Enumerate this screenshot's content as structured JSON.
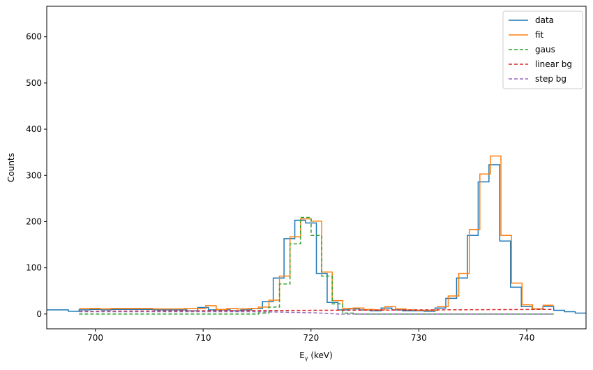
{
  "chart_data": {
    "type": "line",
    "xlabel_main": "E",
    "xlabel_sub": "γ",
    "xlabel_rest": " (keV)",
    "ylabel": "Counts",
    "xlim": [
      695.5,
      745.5
    ],
    "ylim": [
      -32,
      666
    ],
    "xticks": [
      700,
      710,
      720,
      730,
      740
    ],
    "yticks": [
      0,
      100,
      200,
      300,
      400,
      500,
      600
    ],
    "legend_position": "top-right",
    "grid": false,
    "bin_edges": [
      695.5,
      696.5,
      697.5,
      698.5,
      699.5,
      700.5,
      701.5,
      702.5,
      703.5,
      704.5,
      705.5,
      706.5,
      707.5,
      708.5,
      709.5,
      710.5,
      711.5,
      712.5,
      713.5,
      714.5,
      715.5,
      716.5,
      717.5,
      718.5,
      719.5,
      720.5,
      721.5,
      722.5,
      723.5,
      724.5,
      725.5,
      726.5,
      727.5,
      728.5,
      729.5,
      730.5,
      731.5,
      732.5,
      733.5,
      734.5,
      735.5,
      736.5,
      737.5,
      738.5,
      739.5,
      740.5,
      741.5,
      742.5,
      743.5,
      744.5,
      745.5
    ],
    "series": [
      {
        "name": "data",
        "style": "step",
        "color": "#1f77b4",
        "values": [
          9,
          9,
          6,
          9,
          10,
          9,
          10,
          10,
          10,
          10,
          9,
          9,
          9,
          7,
          14,
          9,
          9,
          7,
          9,
          12,
          27,
          78,
          163,
          203,
          197,
          88,
          25,
          9,
          11,
          9,
          7,
          13,
          9,
          7,
          7,
          6,
          13,
          34,
          78,
          170,
          286,
          323,
          158,
          58,
          16,
          11,
          16,
          8,
          5,
          2
        ]
      },
      {
        "name": "fit",
        "style": "step",
        "color": "#ff7f0e",
        "x_range": [
          698.5,
          742.5
        ],
        "values": [
          12,
          12,
          11,
          12,
          12,
          12,
          12,
          11,
          11,
          11,
          12,
          12,
          18,
          10,
          12,
          11,
          12,
          15,
          30,
          82,
          167,
          206,
          201,
          91,
          29,
          12,
          13,
          10,
          9,
          16,
          11,
          9,
          8,
          8,
          16,
          39,
          88,
          183,
          303,
          342,
          170,
          67,
          20,
          11,
          19
        ]
      },
      {
        "name": "gaus",
        "style": "step-dashed",
        "color": "#2ca02c",
        "x_range": [
          698.5,
          742.5
        ],
        "values": [
          0,
          0,
          0,
          0,
          0,
          0,
          0,
          0,
          0,
          0,
          0,
          0,
          0,
          0,
          0,
          0,
          0,
          2,
          15,
          65,
          152,
          209,
          170,
          82,
          22,
          2,
          0,
          0,
          0,
          0,
          0,
          0,
          0,
          0,
          0,
          0,
          0,
          0,
          0,
          0,
          0,
          0,
          0,
          0,
          0
        ]
      },
      {
        "name": "linear bg",
        "style": "dashed",
        "color": "#d62728",
        "x": [
          698.5,
          742.5
        ],
        "y": [
          6,
          10
        ]
      },
      {
        "name": "step bg",
        "style": "dashed",
        "color": "#9467bd",
        "x": [
          698.5,
          714.5,
          716.5,
          718.5,
          720.5,
          722.5,
          742.5
        ],
        "y": [
          5,
          5,
          4.5,
          3.5,
          2.5,
          0,
          0
        ]
      }
    ]
  }
}
